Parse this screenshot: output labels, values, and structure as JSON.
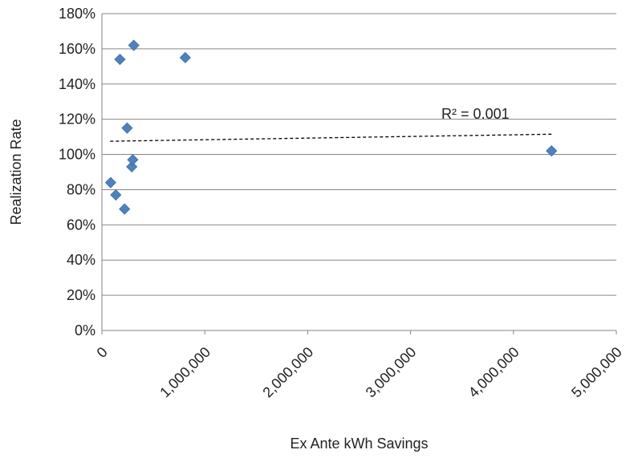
{
  "chart_data": {
    "type": "scatter",
    "xlabel": "Ex Ante kWh Savings",
    "ylabel": "Realization Rate",
    "xlim": [
      0,
      5000000
    ],
    "ylim": [
      0,
      180
    ],
    "x_ticks": [
      0,
      1000000,
      2000000,
      3000000,
      4000000,
      5000000
    ],
    "x_tick_labels": [
      "0",
      "1,000,000",
      "2,000,000",
      "3,000,000",
      "4,000,000",
      "5,000,000"
    ],
    "y_ticks": [
      0,
      20,
      40,
      60,
      80,
      100,
      120,
      140,
      160,
      180
    ],
    "y_tick_labels": [
      "0%",
      "20%",
      "40%",
      "60%",
      "80%",
      "100%",
      "120%",
      "140%",
      "160%",
      "180%"
    ],
    "grid": "horizontal",
    "legend": "none",
    "colors": {
      "points": "#4F81BD",
      "trendline": "#000000",
      "grid": "#868686"
    },
    "series": [
      {
        "marker": "diamond",
        "points": [
          {
            "x": 85000,
            "y": 84
          },
          {
            "x": 135000,
            "y": 77
          },
          {
            "x": 175000,
            "y": 154
          },
          {
            "x": 220000,
            "y": 69
          },
          {
            "x": 245000,
            "y": 115
          },
          {
            "x": 290000,
            "y": 93
          },
          {
            "x": 300000,
            "y": 97
          },
          {
            "x": 310000,
            "y": 162
          },
          {
            "x": 810000,
            "y": 155
          },
          {
            "x": 4370000,
            "y": 102
          }
        ]
      }
    ],
    "trendline": {
      "style": "dashed",
      "x_start": 80000,
      "x_end": 4370000,
      "y_start": 107.5,
      "y_end": 111.5
    },
    "annotations": [
      {
        "text": "R² = 0.001",
        "x": 3300000,
        "y": 123
      }
    ]
  }
}
